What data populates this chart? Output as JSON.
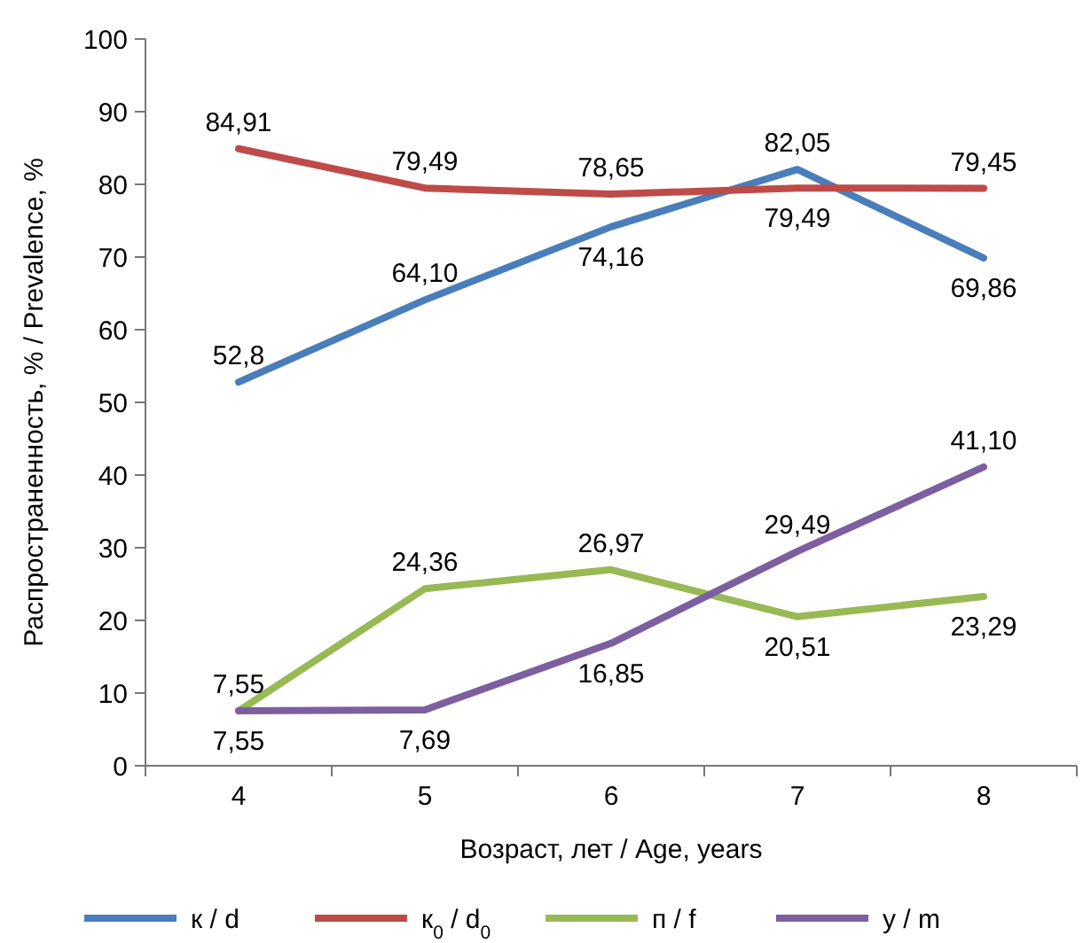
{
  "chart_data": {
    "type": "line",
    "xlabel": "Возраст, лет / Age, years",
    "ylabel": "Распространенность, % / Prevalence, %",
    "categories": [
      "4",
      "5",
      "6",
      "7",
      "8"
    ],
    "ylim": [
      0,
      100
    ],
    "yticks": [
      0,
      10,
      20,
      30,
      40,
      50,
      60,
      70,
      80,
      90,
      100
    ],
    "grid": false,
    "legend": "bottom",
    "marker": "none",
    "line_style": "solid",
    "series": [
      {
        "name": "к / d",
        "color": "#4a7ebb",
        "values": [
          52.8,
          64.1,
          74.16,
          82.05,
          69.86
        ],
        "value_labels": [
          "52,8",
          "64,10",
          "74,16",
          "82,05",
          "69,86"
        ]
      },
      {
        "name": "к$_{0}$ / d$_{0}$",
        "color": "#be4b48",
        "values": [
          84.91,
          79.49,
          78.65,
          79.49,
          79.45
        ],
        "value_labels": [
          "84,91",
          "79,49",
          "78,65",
          "79,49",
          "79,45"
        ]
      },
      {
        "name": "п / f",
        "color": "#98b954",
        "values": [
          7.55,
          24.36,
          26.97,
          20.51,
          23.29
        ],
        "value_labels": [
          "7,55",
          "24,36",
          "26,97",
          "20,51",
          "23,29"
        ]
      },
      {
        "name": "у / m",
        "color": "#7d5fa0",
        "values": [
          7.55,
          7.69,
          16.85,
          29.49,
          41.1
        ],
        "value_labels": [
          "7,55",
          "7,69",
          "16,85",
          "29,49",
          "41,10"
        ]
      }
    ]
  }
}
